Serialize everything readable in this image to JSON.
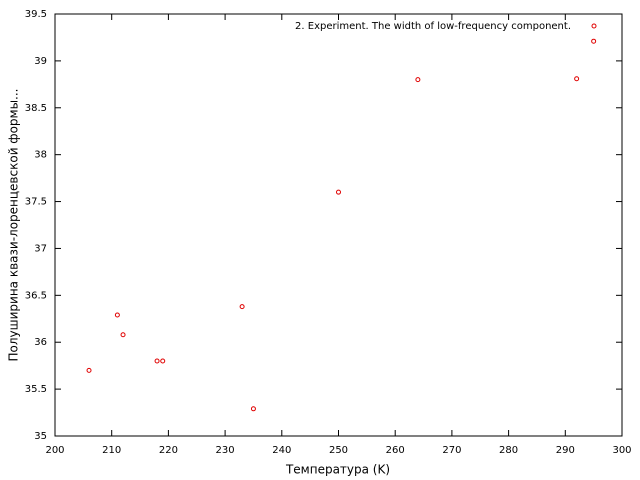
{
  "chart_data": {
    "type": "scatter",
    "xlabel": "Температура (K)",
    "ylabel": "Полуширина квази-лоренцевской формы...",
    "series": [
      {
        "name": "2. Experiment. The width of low-frequency component.",
        "color": "#e00000",
        "x": [
          206,
          211,
          212,
          218,
          219,
          233,
          235,
          250,
          264,
          292,
          295
        ],
        "values": [
          35.7,
          36.29,
          36.08,
          35.8,
          35.8,
          36.38,
          35.29,
          37.6,
          38.8,
          38.81,
          39.21
        ]
      }
    ],
    "xlim": [
      200,
      300
    ],
    "xticks": [
      200,
      210,
      220,
      230,
      240,
      250,
      260,
      270,
      280,
      290,
      300
    ],
    "ylim": [
      35,
      39.5
    ],
    "yticks": [
      35,
      35.5,
      36,
      36.5,
      37,
      37.5,
      38,
      38.5,
      39,
      39.5
    ],
    "grid": false,
    "legend": "top-right"
  }
}
